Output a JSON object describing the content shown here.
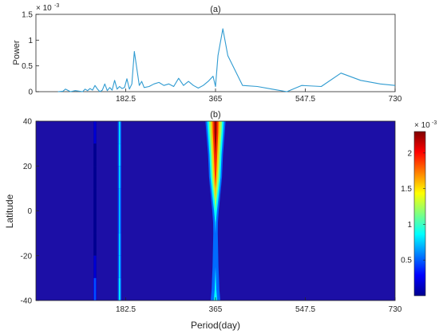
{
  "chart_data": [
    {
      "type": "line",
      "title": "(a)",
      "ylabel": "Power",
      "xlabel": "",
      "y_exponent_label": "× 10",
      "y_exponent_power": "-3",
      "xlim": [
        0,
        730
      ],
      "ylim": [
        0,
        1.5
      ],
      "x_ticks": [
        182.5,
        365,
        547.5,
        730
      ],
      "x_tick_labels": [
        "182.5",
        "365",
        "547.5",
        "730"
      ],
      "y_ticks": [
        0,
        0.5,
        1,
        1.5
      ],
      "y_tick_labels": [
        "0",
        "0.5",
        "1",
        "1.5"
      ],
      "series": [
        {
          "color": "#2f9bd1",
          "x": [
            45,
            55,
            60,
            70,
            80,
            95,
            100,
            105,
            110,
            115,
            120,
            125,
            130,
            135,
            140,
            145,
            150,
            155,
            160,
            165,
            170,
            175,
            180,
            185,
            190,
            195,
            200,
            210,
            215,
            220,
            230,
            240,
            250,
            260,
            270,
            280,
            290,
            300,
            310,
            320,
            330,
            340,
            350,
            360,
            365,
            370,
            380,
            390,
            420,
            450,
            480,
            510,
            540,
            580,
            620,
            660,
            700,
            730
          ],
          "y": [
            0.0,
            0.01,
            0.05,
            0.0,
            0.02,
            0.0,
            0.05,
            0.02,
            0.06,
            0.03,
            0.12,
            0.05,
            0.0,
            0.03,
            0.15,
            0.02,
            0.08,
            0.03,
            0.22,
            0.05,
            0.1,
            0.06,
            0.08,
            0.25,
            0.05,
            0.15,
            0.78,
            0.12,
            0.2,
            0.08,
            0.1,
            0.15,
            0.18,
            0.12,
            0.15,
            0.1,
            0.26,
            0.12,
            0.2,
            0.12,
            0.07,
            0.12,
            0.2,
            0.3,
            0.1,
            0.7,
            1.22,
            0.7,
            0.12,
            0.1,
            0.05,
            0.0,
            0.12,
            0.1,
            0.36,
            0.22,
            0.15,
            0.12
          ]
        }
      ]
    },
    {
      "type": "heatmap",
      "title": "(b)",
      "xlabel": "Period(day)",
      "ylabel": "Latitude",
      "xlim": [
        0,
        730
      ],
      "ylim": [
        -40,
        40
      ],
      "x_ticks": [
        182.5,
        365,
        547.5,
        730
      ],
      "x_tick_labels": [
        "182.5",
        "365",
        "547.5",
        "730"
      ],
      "y_ticks": [
        40,
        20,
        0,
        -20,
        -40
      ],
      "y_tick_labels": [
        "40",
        "20",
        "0",
        "-20",
        "-40"
      ],
      "colormap": "jet",
      "background_color": "#1c0fa6",
      "colorbar": {
        "range": [
          0,
          0.0023
        ],
        "ticks": [
          0.5,
          1,
          1.5,
          2
        ],
        "tick_labels": [
          "0.5",
          "1",
          "1.5",
          "2"
        ],
        "exponent_label": "× 10",
        "exponent_power": "-3"
      },
      "bands": [
        {
          "period": 120,
          "half_width_days": 3,
          "values": [
            0.18,
            0.02,
            0.02,
            0.02,
            0.02,
            0.02,
            0.02,
            0.18,
            0.3
          ],
          "latitudes": [
            40,
            30,
            20,
            10,
            0,
            -10,
            -20,
            -30,
            -40
          ]
        },
        {
          "period": 170,
          "half_width_days": 3.5,
          "values": [
            0.35,
            0.38,
            0.36,
            0.34,
            0.32,
            0.34,
            0.36,
            0.34,
            0.42
          ],
          "latitudes": [
            40,
            30,
            20,
            10,
            0,
            -10,
            -20,
            -30,
            -40
          ]
        },
        {
          "period": 365,
          "latitudes": [
            40,
            35,
            30,
            25,
            20,
            15,
            10,
            5,
            0,
            -5,
            -10,
            -15,
            -20,
            -25,
            -30,
            -35,
            -40
          ],
          "half_widths": [
            24,
            22,
            20,
            18,
            17,
            16,
            14,
            12,
            10,
            9,
            9,
            10,
            11,
            12,
            13,
            14,
            16
          ],
          "peak_values": [
            1.0,
            1.0,
            0.96,
            0.92,
            0.88,
            0.82,
            0.7,
            0.55,
            0.42,
            0.33,
            0.3,
            0.3,
            0.3,
            0.3,
            0.32,
            0.34,
            0.38
          ]
        }
      ]
    }
  ]
}
